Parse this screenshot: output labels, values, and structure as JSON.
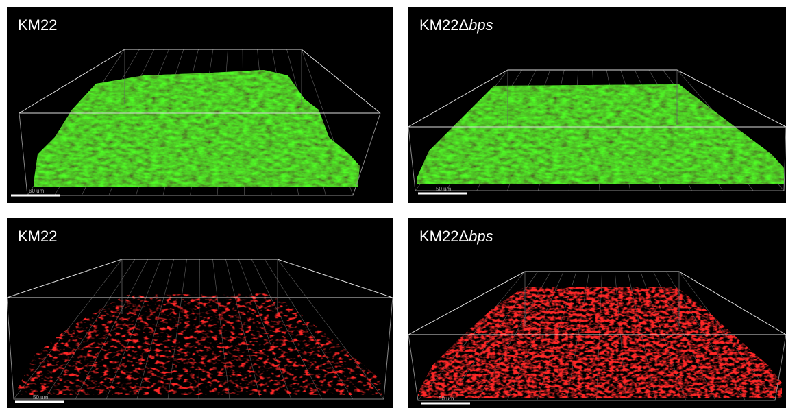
{
  "panels": [
    {
      "label": "KM22",
      "scale_bar": "50 um"
    },
    {
      "label_prefix": "KM22Δ",
      "label_italic": "bps",
      "scale_bar": "50 um"
    },
    {
      "label": "KM22",
      "scale_bar": "50 um"
    },
    {
      "label_prefix": "KM22Δ",
      "label_italic": "bps",
      "scale_bar": "50 um"
    }
  ]
}
